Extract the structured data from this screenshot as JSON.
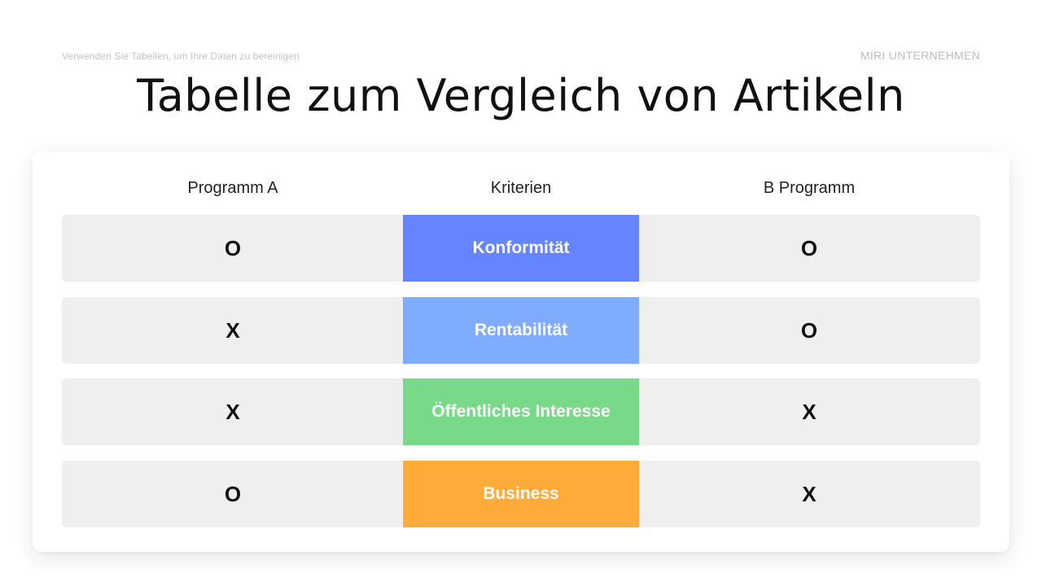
{
  "header": {
    "subtitle": "Verwenden Sie Tabellen, um Ihre Daten zu bereinigen",
    "company": "MIRI UNTERNEHMEN",
    "title": "Tabelle zum Vergleich von Artikeln"
  },
  "table": {
    "columns": [
      "Programm A",
      "Kriterien",
      "B Programm"
    ],
    "rows": [
      {
        "a": "O",
        "criterion": "Konformität",
        "b": "O",
        "color": "#6584ff"
      },
      {
        "a": "X",
        "criterion": "Rentabilität",
        "b": "O",
        "color": "#80acff"
      },
      {
        "a": "X",
        "criterion": "Öffentliches Interesse",
        "b": "X",
        "color": "#78d989"
      },
      {
        "a": "O",
        "criterion": "Business",
        "b": "X",
        "color": "#ffab3a"
      }
    ]
  }
}
